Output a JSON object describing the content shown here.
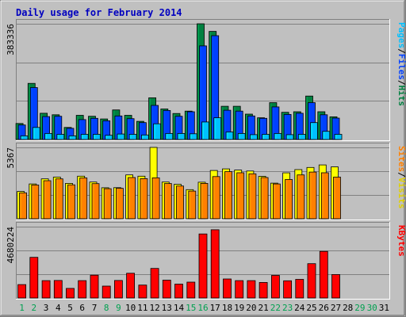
{
  "chart_data": {
    "type": "bar",
    "title": "Daily usage for February 2014",
    "days": [
      "1",
      "2",
      "3",
      "4",
      "5",
      "6",
      "7",
      "8",
      "9",
      "10",
      "11",
      "12",
      "13",
      "14",
      "15",
      "16",
      "17",
      "18",
      "19",
      "20",
      "21",
      "22",
      "23",
      "24",
      "25",
      "26",
      "27",
      "28",
      "29",
      "30",
      "31"
    ],
    "weekend_days": [
      "1",
      "2",
      "8",
      "9",
      "15",
      "16",
      "22",
      "23",
      "29",
      "30"
    ],
    "panels": [
      {
        "name": "hits-files-pages",
        "max_label": "383336",
        "ymax": 383336,
        "side_labels": [
          {
            "text": "Hits",
            "color": "#008040"
          },
          {
            "text": "/",
            "color": "#000000"
          },
          {
            "text": "Files",
            "color": "#0040ff"
          },
          {
            "text": "/",
            "color": "#000000"
          },
          {
            "text": "Pages",
            "color": "#00c0ff"
          }
        ],
        "series": [
          {
            "name": "Hits",
            "color": "#008040",
            "values": [
              53000,
              186000,
              87000,
              82000,
              40000,
              80000,
              77000,
              68000,
              98000,
              80000,
              60000,
              138000,
              101000,
              86000,
              94000,
              383336,
              358000,
              110000,
              110000,
              84000,
              72000,
              122000,
              90000,
              92000,
              144000,
              92000,
              75000,
              0,
              0,
              0,
              0
            ]
          },
          {
            "name": "Files",
            "color": "#0040ff",
            "values": [
              48000,
              172000,
              76000,
              77000,
              37000,
              66000,
              70000,
              62000,
              78000,
              69000,
              56000,
              113000,
              96000,
              77000,
              92000,
              310000,
              344000,
              97000,
              94000,
              78000,
              70000,
              108000,
              83000,
              87000,
              122000,
              82000,
              71000,
              0,
              0,
              0,
              0
            ]
          },
          {
            "name": "Pages",
            "color": "#00c0ff",
            "values": [
              12000,
              40000,
              20000,
              17000,
              12000,
              17000,
              17000,
              14000,
              18000,
              17000,
              15000,
              52000,
              20000,
              20000,
              19000,
              58000,
              72000,
              25000,
              20000,
              16000,
              17000,
              20000,
              16000,
              17000,
              56000,
              27000,
              17000,
              0,
              0,
              0,
              0
            ]
          }
        ]
      },
      {
        "name": "visits-sites",
        "max_label": "5367",
        "ymax": 5367,
        "side_labels": [
          {
            "text": "Visits",
            "color": "#e0d000"
          },
          {
            "text": "/",
            "color": "#000000"
          },
          {
            "text": "Sites",
            "color": "#ff8000"
          }
        ],
        "series": [
          {
            "name": "Visits",
            "color": "#ffff00",
            "values": [
              2050,
              2620,
              3000,
              3130,
              2660,
              3200,
              2760,
              2330,
              2340,
              3300,
              3200,
              5367,
              2760,
              2590,
              2190,
              2750,
              3630,
              3750,
              3660,
              3590,
              3190,
              2680,
              3450,
              3700,
              3860,
              4050,
              3900,
              0,
              0,
              0,
              0
            ]
          },
          {
            "name": "Sites",
            "color": "#ff8000",
            "values": [
              1950,
              2540,
              2860,
              3000,
              2550,
              3070,
              2640,
              2260,
              2290,
              3100,
              3020,
              3080,
              2650,
              2460,
              2080,
              2660,
              3170,
              3540,
              3460,
              3380,
              3100,
              2620,
              2950,
              3300,
              3510,
              3460,
              3130,
              0,
              0,
              0,
              0
            ]
          }
        ]
      },
      {
        "name": "kbytes",
        "max_label": "4680224",
        "ymax": 4680224,
        "side_labels": [
          {
            "text": "KBytes",
            "color": "#ff0000"
          }
        ],
        "series": [
          {
            "name": "KBytes",
            "color": "#ff0000",
            "values": [
              880000,
              2670000,
              1140000,
              1150000,
              630000,
              1140000,
              1500000,
              780000,
              1150000,
              1620000,
              850000,
              1940000,
              1170000,
              910000,
              1040000,
              4200000,
              4480000,
              1250000,
              1140000,
              1140000,
              1020000,
              1480000,
              1130000,
              1220000,
              2250000,
              3060000,
              1540000,
              0,
              0,
              0,
              0
            ]
          }
        ]
      }
    ]
  }
}
